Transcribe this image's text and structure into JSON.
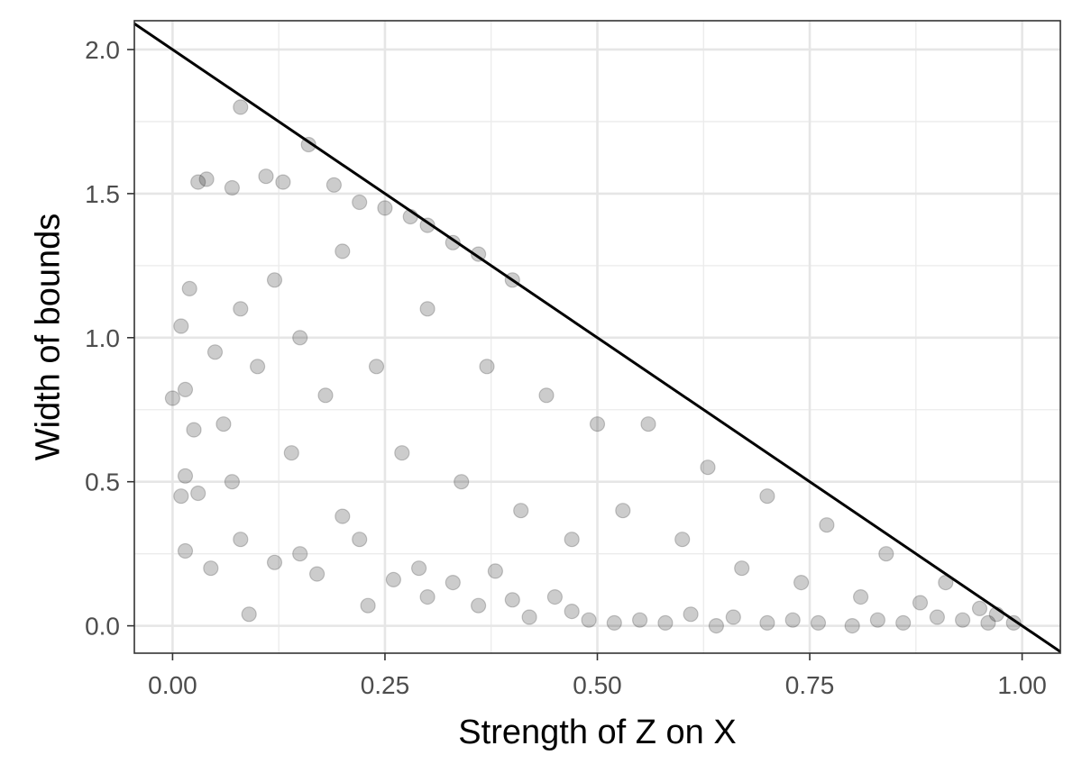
{
  "chart_data": {
    "type": "scatter",
    "title": "",
    "xlabel": "Strength of Z on X",
    "ylabel": "Width of bounds",
    "xlim": [
      -0.045,
      1.045
    ],
    "ylim": [
      -0.095,
      2.1
    ],
    "x_ticks": [
      0.0,
      0.25,
      0.5,
      0.75,
      1.0
    ],
    "x_tick_labels": [
      "0.00",
      "0.25",
      "0.50",
      "0.75",
      "1.00"
    ],
    "y_ticks": [
      0.0,
      0.5,
      1.0,
      1.5,
      2.0
    ],
    "y_tick_labels": [
      "0.0",
      "0.5",
      "1.0",
      "1.5",
      "2.0"
    ],
    "grid": true,
    "legend": "none",
    "point_color": "#000000",
    "point_alpha": 0.2,
    "reference_line": {
      "intercept": 2.0,
      "slope": -2.0
    },
    "series": [
      {
        "points": [
          [
            0.08,
            1.8
          ],
          [
            0.16,
            1.67
          ],
          [
            0.03,
            1.54
          ],
          [
            0.04,
            1.55
          ],
          [
            0.11,
            1.56
          ],
          [
            0.13,
            1.54
          ],
          [
            0.07,
            1.52
          ],
          [
            0.19,
            1.53
          ],
          [
            0.22,
            1.47
          ],
          [
            0.25,
            1.45
          ],
          [
            0.28,
            1.42
          ],
          [
            0.3,
            1.39
          ],
          [
            0.33,
            1.33
          ],
          [
            0.36,
            1.29
          ],
          [
            0.4,
            1.2
          ],
          [
            0.02,
            1.17
          ],
          [
            0.01,
            1.04
          ],
          [
            0.0,
            0.79
          ],
          [
            0.015,
            0.82
          ],
          [
            0.01,
            0.45
          ],
          [
            0.015,
            0.52
          ],
          [
            0.015,
            0.26
          ],
          [
            0.045,
            0.2
          ],
          [
            0.03,
            0.46
          ],
          [
            0.025,
            0.68
          ],
          [
            0.09,
            0.04
          ],
          [
            0.08,
            0.3
          ],
          [
            0.12,
            0.22
          ],
          [
            0.15,
            0.25
          ],
          [
            0.17,
            0.18
          ],
          [
            0.2,
            0.38
          ],
          [
            0.22,
            0.3
          ],
          [
            0.23,
            0.07
          ],
          [
            0.26,
            0.16
          ],
          [
            0.29,
            0.2
          ],
          [
            0.3,
            0.1
          ],
          [
            0.33,
            0.15
          ],
          [
            0.36,
            0.07
          ],
          [
            0.38,
            0.19
          ],
          [
            0.4,
            0.09
          ],
          [
            0.42,
            0.03
          ],
          [
            0.45,
            0.1
          ],
          [
            0.47,
            0.05
          ],
          [
            0.49,
            0.02
          ],
          [
            0.52,
            0.01
          ],
          [
            0.55,
            0.02
          ],
          [
            0.58,
            0.01
          ],
          [
            0.61,
            0.04
          ],
          [
            0.64,
            0.0
          ],
          [
            0.66,
            0.03
          ],
          [
            0.7,
            0.01
          ],
          [
            0.73,
            0.02
          ],
          [
            0.76,
            0.01
          ],
          [
            0.8,
            0.0
          ],
          [
            0.83,
            0.02
          ],
          [
            0.86,
            0.01
          ],
          [
            0.9,
            0.03
          ],
          [
            0.93,
            0.02
          ],
          [
            0.96,
            0.01
          ],
          [
            0.99,
            0.01
          ],
          [
            0.05,
            0.95
          ],
          [
            0.06,
            0.7
          ],
          [
            0.07,
            0.5
          ],
          [
            0.08,
            1.1
          ],
          [
            0.1,
            0.9
          ],
          [
            0.12,
            1.2
          ],
          [
            0.14,
            0.6
          ],
          [
            0.15,
            1.0
          ],
          [
            0.18,
            0.8
          ],
          [
            0.2,
            1.3
          ],
          [
            0.24,
            0.9
          ],
          [
            0.27,
            0.6
          ],
          [
            0.3,
            1.1
          ],
          [
            0.34,
            0.5
          ],
          [
            0.37,
            0.9
          ],
          [
            0.41,
            0.4
          ],
          [
            0.44,
            0.8
          ],
          [
            0.47,
            0.3
          ],
          [
            0.5,
            0.7
          ],
          [
            0.53,
            0.4
          ],
          [
            0.56,
            0.7
          ],
          [
            0.6,
            0.3
          ],
          [
            0.63,
            0.55
          ],
          [
            0.67,
            0.2
          ],
          [
            0.7,
            0.45
          ],
          [
            0.74,
            0.15
          ],
          [
            0.77,
            0.35
          ],
          [
            0.81,
            0.1
          ],
          [
            0.84,
            0.25
          ],
          [
            0.88,
            0.08
          ],
          [
            0.91,
            0.15
          ],
          [
            0.95,
            0.06
          ],
          [
            0.97,
            0.04
          ]
        ]
      }
    ]
  }
}
